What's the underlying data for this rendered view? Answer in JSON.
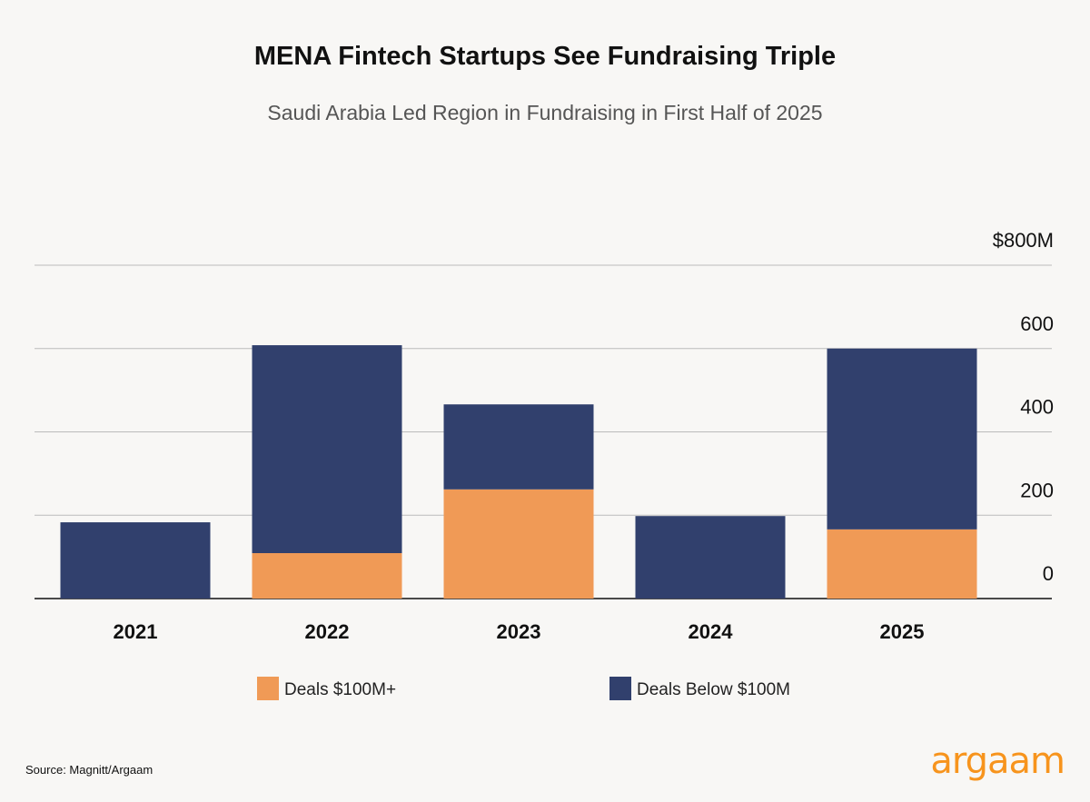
{
  "chart_data": {
    "type": "bar",
    "stacked": true,
    "title": "MENA Fintech Startups See Fundraising Triple",
    "subtitle": "Saudi Arabia Led Region in Fundraising in First Half of 2025",
    "xlabel": "",
    "ylabel": "",
    "categories": [
      "2021",
      "2022",
      "2023",
      "2024",
      "2025"
    ],
    "series": [
      {
        "name": "Deals $100M+",
        "color": "#f09a56",
        "values": [
          0,
          109,
          262,
          0,
          166
        ]
      },
      {
        "name": "Deals Below $100M",
        "color": "#31406d",
        "values": [
          183,
          499,
          204,
          198,
          434
        ]
      }
    ],
    "ylim": [
      0,
      800
    ],
    "yticks": [
      0,
      200,
      400,
      600,
      800
    ],
    "ytick_labels": [
      "0",
      "200",
      "400",
      "600",
      "$800M"
    ],
    "grid": true,
    "legend_position": "bottom"
  },
  "source": "Source: Magnitt/Argaam",
  "logo": "argaam"
}
